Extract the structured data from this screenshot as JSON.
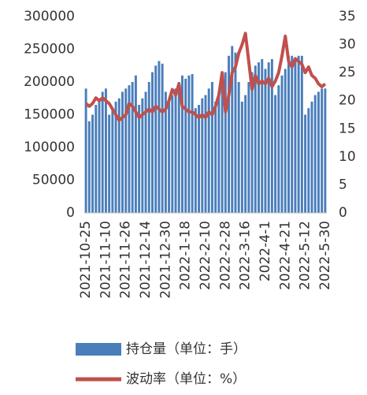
{
  "chart_data": {
    "type": "bar-line",
    "categories": [
      "2021-10-25",
      null,
      null,
      null,
      null,
      null,
      "2021-11-10",
      null,
      null,
      null,
      null,
      null,
      "2021-11-26",
      null,
      null,
      null,
      null,
      null,
      "2021-12-14",
      null,
      null,
      null,
      null,
      null,
      "2021-12-30",
      null,
      null,
      null,
      null,
      null,
      "2022-1-18",
      null,
      null,
      null,
      null,
      null,
      "2022-2-10",
      null,
      null,
      null,
      null,
      null,
      "2022-2-28",
      null,
      null,
      null,
      null,
      null,
      "2022-3-16",
      null,
      null,
      null,
      null,
      null,
      "2022-4-1",
      null,
      null,
      null,
      null,
      null,
      "2022-4-21",
      null,
      null,
      null,
      null,
      null,
      "2022-5-12",
      null,
      null,
      null,
      null,
      null,
      "2022-5-30"
    ],
    "series": [
      {
        "name": "持仓量（单位：手）",
        "color": "#4a7ebb",
        "type": "bar",
        "values": [
          190000,
          140000,
          150000,
          165000,
          175000,
          185000,
          190000,
          150000,
          160000,
          170000,
          175000,
          185000,
          190000,
          195000,
          200000,
          210000,
          165000,
          175000,
          185000,
          200000,
          215000,
          225000,
          232000,
          228000,
          185000,
          170000,
          180000,
          190000,
          200000,
          210000,
          205000,
          210000,
          212000,
          160000,
          165000,
          175000,
          180000,
          190000,
          200000,
          170000,
          185000,
          200000,
          215000,
          240000,
          255000,
          245000,
          200000,
          170000,
          180000,
          200000,
          215000,
          225000,
          230000,
          235000,
          220000,
          230000,
          235000,
          180000,
          195000,
          210000,
          220000,
          240000,
          240000,
          235000,
          240000,
          240000,
          150000,
          160000,
          170000,
          180000,
          185000,
          190000,
          190000
        ]
      },
      {
        "name": "波动率（单位：%）",
        "color": "#c0504d",
        "type": "line",
        "axis": "y2",
        "values": [
          19.5,
          19,
          19.5,
          20.5,
          20,
          20.5,
          20,
          19.5,
          18.5,
          17.5,
          16.5,
          17,
          17.5,
          19.5,
          19,
          18,
          17,
          17.5,
          18,
          18.5,
          18,
          19,
          18.5,
          18,
          18.5,
          20,
          22,
          21,
          23,
          19,
          18.5,
          18,
          18,
          17.5,
          17,
          17.5,
          17,
          18,
          17.5,
          19,
          21,
          25,
          18,
          21,
          25,
          26,
          28.5,
          30,
          32,
          27,
          22,
          24.5,
          23,
          23.5,
          23,
          24,
          22.5,
          23.5,
          25,
          28,
          31.5,
          27,
          26,
          27.5,
          27,
          26.5,
          25,
          26,
          24.5,
          24,
          23,
          22.5,
          23
        ]
      }
    ],
    "ylim": [
      0,
      300000
    ],
    "yticks": [
      0,
      50000,
      100000,
      150000,
      200000,
      250000,
      300000
    ],
    "y2lim": [
      0,
      35
    ],
    "y2ticks": [
      0,
      5,
      10,
      15,
      20,
      25,
      30,
      35
    ]
  }
}
